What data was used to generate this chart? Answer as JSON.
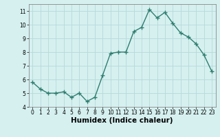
{
  "x": [
    0,
    1,
    2,
    3,
    4,
    5,
    6,
    7,
    8,
    9,
    10,
    11,
    12,
    13,
    14,
    15,
    16,
    17,
    18,
    19,
    20,
    21,
    22,
    23
  ],
  "y": [
    5.8,
    5.3,
    5.0,
    5.0,
    5.1,
    4.7,
    5.0,
    4.4,
    4.7,
    6.3,
    7.9,
    8.0,
    8.0,
    9.5,
    9.8,
    11.1,
    10.5,
    10.9,
    10.1,
    9.4,
    9.1,
    8.6,
    7.8,
    6.6
  ],
  "line_color": "#2e7d6e",
  "marker": "+",
  "marker_size": 4,
  "bg_color": "#d6f0f0",
  "grid_color": "#b8d8d8",
  "xlabel": "Humidex (Indice chaleur)",
  "xlim": [
    -0.5,
    23.5
  ],
  "ylim": [
    4,
    11.5
  ],
  "yticks": [
    4,
    5,
    6,
    7,
    8,
    9,
    10,
    11
  ],
  "xticks": [
    0,
    1,
    2,
    3,
    4,
    5,
    6,
    7,
    8,
    9,
    10,
    11,
    12,
    13,
    14,
    15,
    16,
    17,
    18,
    19,
    20,
    21,
    22,
    23
  ],
  "tick_fontsize": 5.5,
  "xlabel_fontsize": 7.5,
  "linewidth": 1.0
}
